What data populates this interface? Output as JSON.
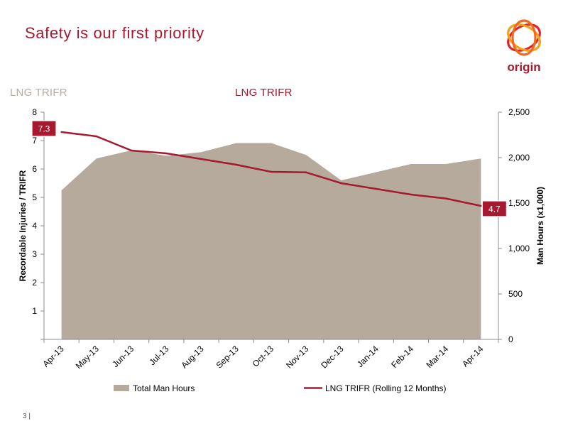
{
  "slide": {
    "title": "Safety is our first priority",
    "label_left": "LNG TRIFR",
    "label_center": "LNG TRIFR",
    "page_number": "3 |",
    "logo_text": "origin"
  },
  "colors": {
    "accent": "#a6192e",
    "area": "#b5aa9c",
    "line": "#a6192e",
    "muted_label": "#b7ada0"
  },
  "chart_data": {
    "type": "area",
    "categories": [
      "Apr-13",
      "May-13",
      "Jun-13",
      "Jul-13",
      "Aug-13",
      "Sep-13",
      "Oct-13",
      "Nov-13",
      "Dec-13",
      "Jan-14",
      "Feb-14",
      "Mar-14",
      "Apr-14"
    ],
    "series": [
      {
        "name": "Total Man Hours",
        "type": "area",
        "axis": "right",
        "values": [
          1640,
          1990,
          2080,
          2020,
          2060,
          2160,
          2160,
          2030,
          1750,
          1840,
          1930,
          1930,
          1990
        ]
      },
      {
        "name": "LNG TRIFR (Rolling 12 Months)",
        "type": "line",
        "axis": "left",
        "values": [
          7.3,
          7.15,
          6.65,
          6.55,
          6.35,
          6.15,
          5.9,
          5.88,
          5.5,
          5.3,
          5.1,
          4.96,
          4.7
        ]
      }
    ],
    "y_left": {
      "label": "Recordable Injuries / TRIFR",
      "min": 0,
      "max": 8,
      "ticks": [
        0,
        1,
        2,
        3,
        4,
        5,
        6,
        7,
        8
      ],
      "tick_labels": [
        "",
        "1",
        "2",
        "3",
        "4",
        "5",
        "6",
        "7",
        "8"
      ]
    },
    "y_right": {
      "label": "Man Hours (x1,000)",
      "min": 0,
      "max": 2500,
      "ticks": [
        0,
        500,
        1000,
        1500,
        2000,
        2500
      ],
      "tick_labels": [
        "0",
        "500",
        "1,000",
        "1,500",
        "2,000",
        "2,500"
      ]
    },
    "annotations": [
      {
        "series": 1,
        "index": 0,
        "text": "7.3"
      },
      {
        "series": 1,
        "index": 12,
        "text": "4.7"
      }
    ],
    "grid": false,
    "legend": {
      "position": "bottom",
      "items": [
        "Total Man Hours",
        "LNG TRIFR (Rolling 12 Months)"
      ]
    }
  }
}
